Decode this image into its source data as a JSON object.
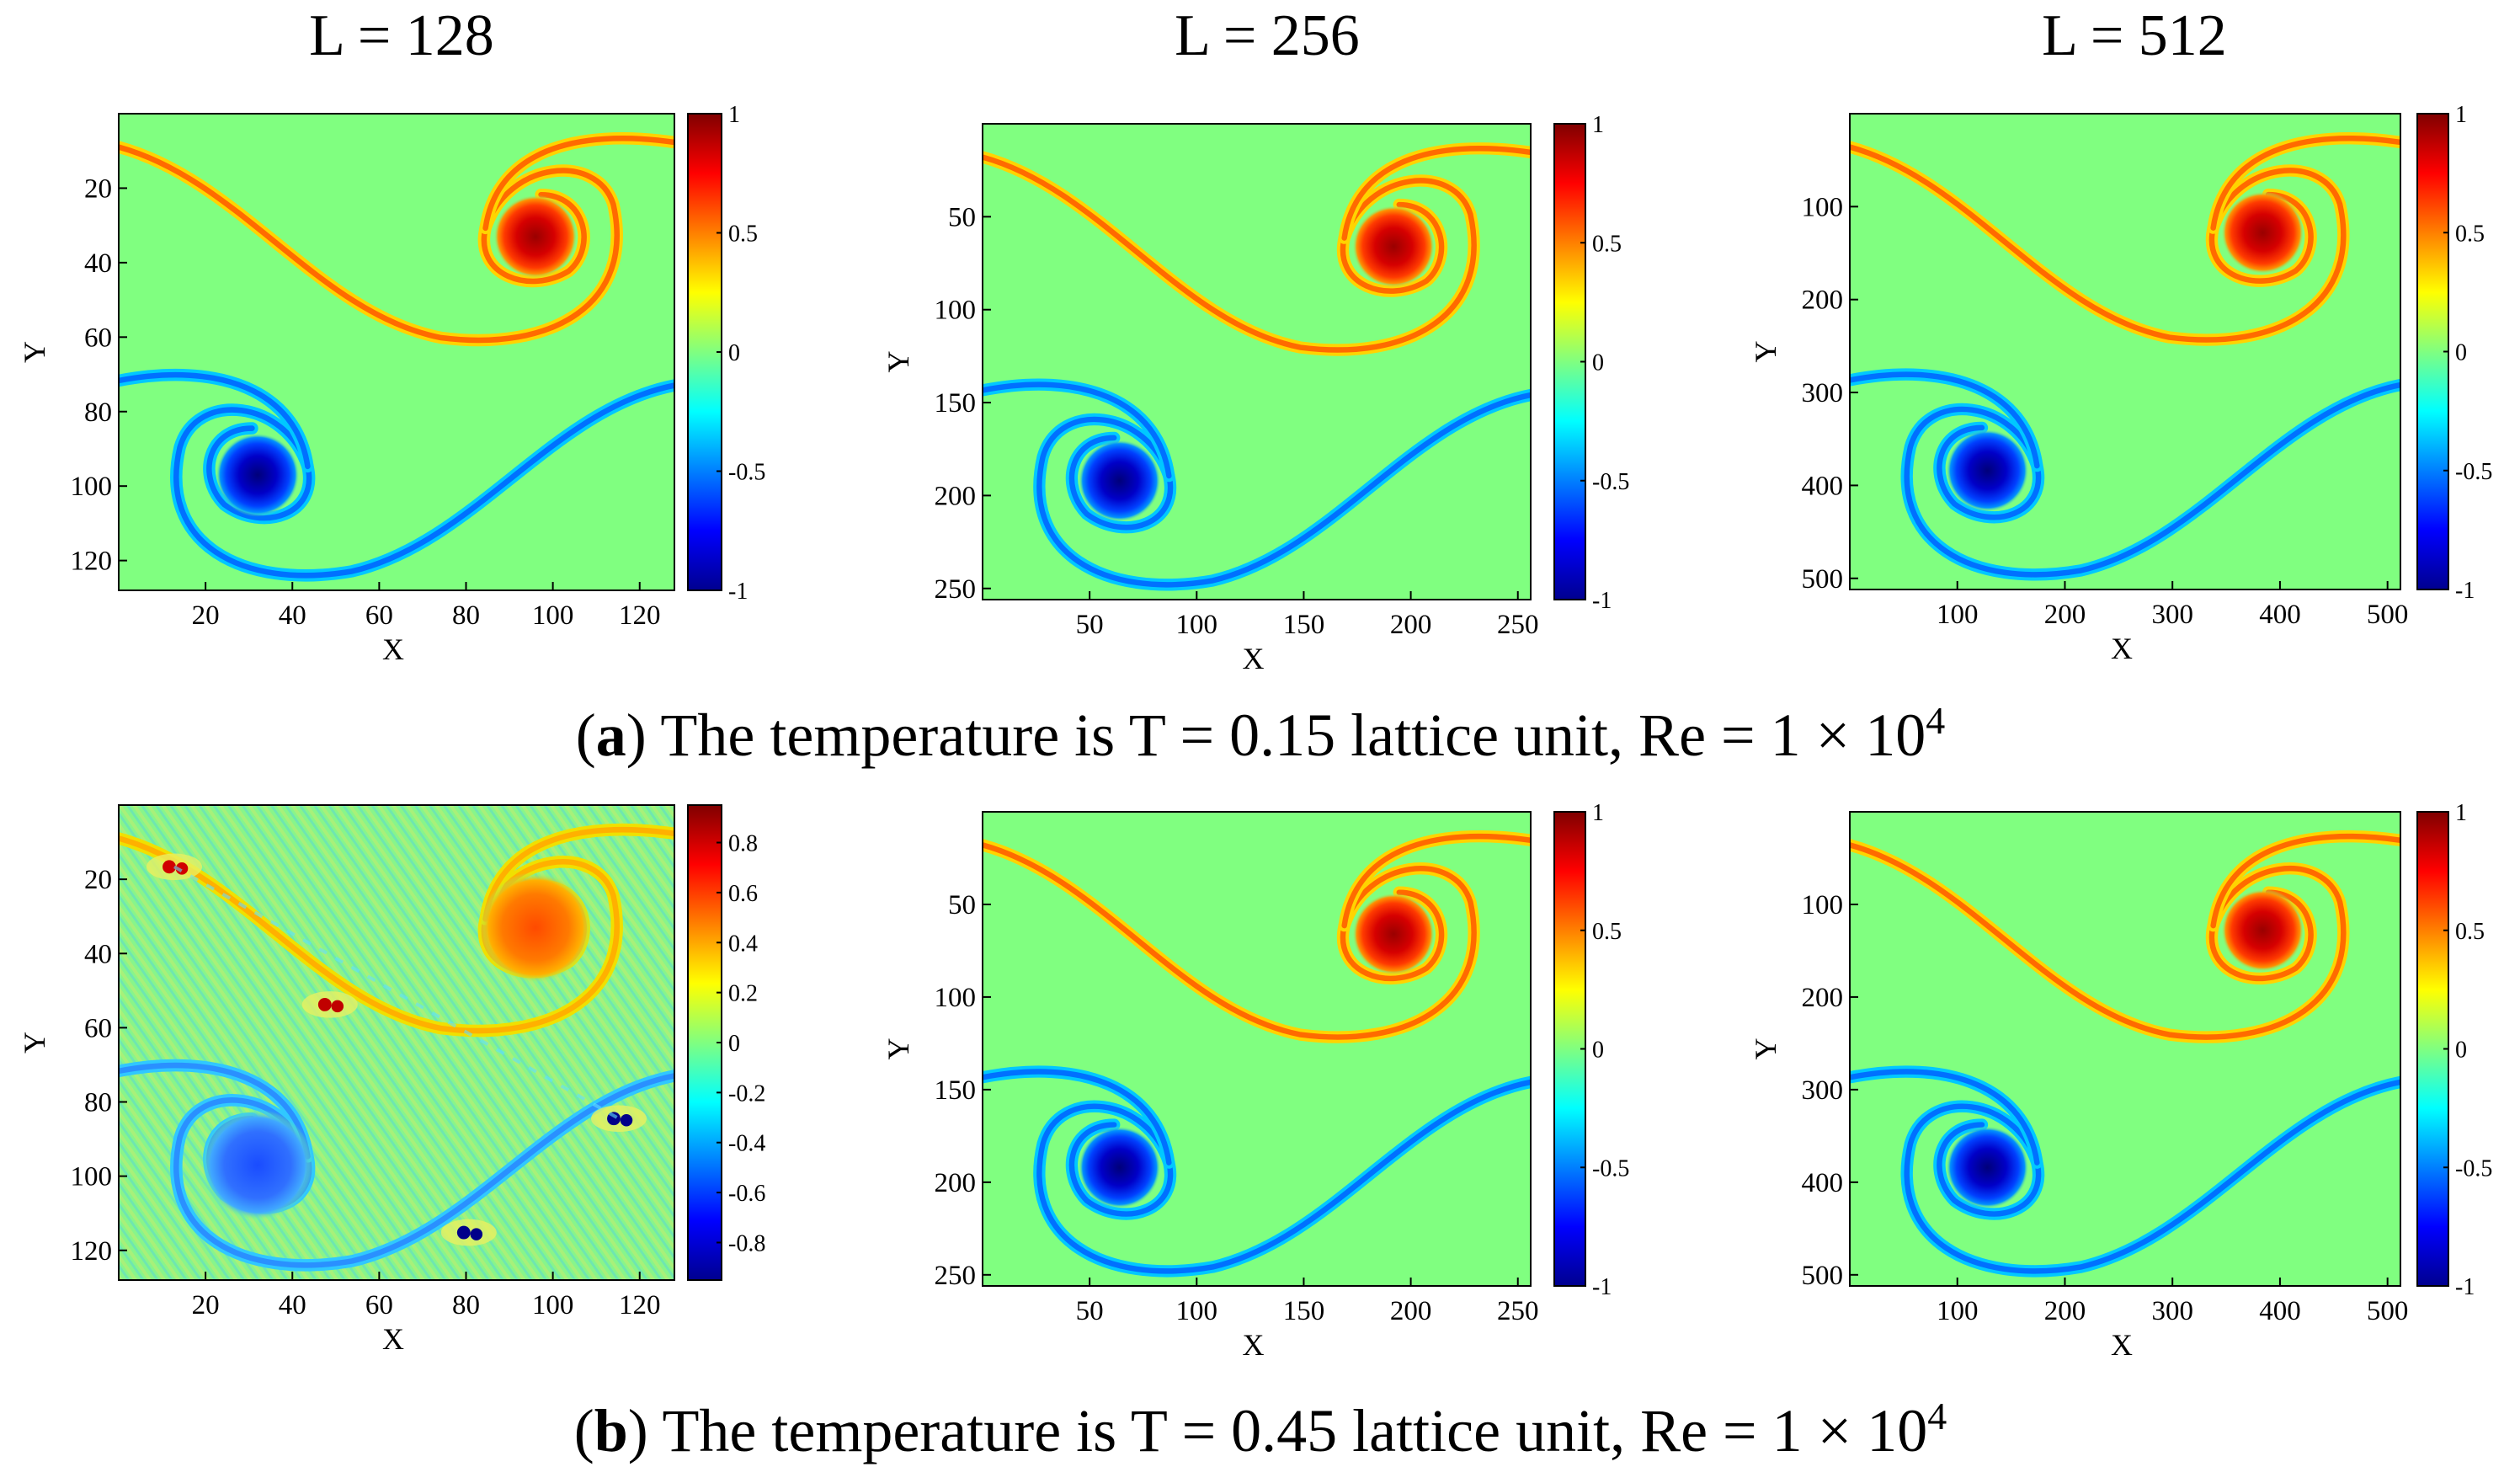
{
  "figure": {
    "column_titles": [
      "L = 128",
      "L = 256",
      "L = 512"
    ],
    "captions": [
      {
        "tag": "a",
        "text": "The temperature is T = 0.15 lattice unit, Re = 1 × 10",
        "sup": "4"
      },
      {
        "tag": "b",
        "text": "The temperature is T = 0.45 lattice unit, Re = 1 × 10",
        "sup": "4"
      }
    ]
  },
  "colors": {
    "colormap": [
      "#00008f",
      "#0000ff",
      "#00ffff",
      "#80ff80",
      "#ffff00",
      "#ff0000",
      "#800000"
    ],
    "axis": "#000000"
  },
  "chart_data": [
    {
      "id": "a1",
      "type": "heatmap",
      "row": "a",
      "L": 128,
      "xlabel": "X",
      "ylabel": "Y",
      "xlim": [
        0,
        128
      ],
      "ylim": [
        128,
        0
      ],
      "x_ticks": [
        20,
        40,
        60,
        80,
        100,
        120
      ],
      "y_ticks": [
        20,
        40,
        60,
        80,
        100,
        120
      ],
      "colorbar": {
        "min": -1,
        "max": 1,
        "ticks": [
          -1,
          -0.5,
          0,
          0.5,
          1
        ],
        "tick_labels": [
          "-1",
          "-0.5",
          "0",
          "0.5",
          "1"
        ]
      },
      "features": {
        "positive_vortex_center": [
          96,
          33
        ],
        "negative_vortex_center": [
          32,
          97
        ],
        "noise": false
      }
    },
    {
      "id": "a2",
      "type": "heatmap",
      "row": "a",
      "L": 256,
      "xlabel": "X",
      "ylabel": "Y",
      "xlim": [
        0,
        256
      ],
      "ylim": [
        256,
        0
      ],
      "x_ticks": [
        50,
        100,
        150,
        200,
        250
      ],
      "y_ticks": [
        50,
        100,
        150,
        200,
        250
      ],
      "colorbar": {
        "min": -1,
        "max": 1,
        "ticks": [
          -1,
          -0.5,
          0,
          0.5,
          1
        ],
        "tick_labels": [
          "-1",
          "-0.5",
          "0",
          "0.5",
          "1"
        ]
      },
      "features": {
        "positive_vortex_center": [
          192,
          66
        ],
        "negative_vortex_center": [
          64,
          192
        ],
        "noise": false
      }
    },
    {
      "id": "a3",
      "type": "heatmap",
      "row": "a",
      "L": 512,
      "xlabel": "X",
      "ylabel": "Y",
      "xlim": [
        0,
        512
      ],
      "ylim": [
        512,
        0
      ],
      "x_ticks": [
        100,
        200,
        300,
        400,
        500
      ],
      "y_ticks": [
        100,
        200,
        300,
        400,
        500
      ],
      "colorbar": {
        "min": -1,
        "max": 1,
        "ticks": [
          -1,
          -0.5,
          0,
          0.5,
          1
        ],
        "tick_labels": [
          "-1",
          "-0.5",
          "0",
          "0.5",
          "1"
        ]
      },
      "features": {
        "positive_vortex_center": [
          384,
          128
        ],
        "negative_vortex_center": [
          128,
          384
        ],
        "noise": false
      }
    },
    {
      "id": "b1",
      "type": "heatmap",
      "row": "b",
      "L": 128,
      "xlabel": "X",
      "ylabel": "Y",
      "xlim": [
        0,
        128
      ],
      "ylim": [
        128,
        0
      ],
      "x_ticks": [
        20,
        40,
        60,
        80,
        100,
        120
      ],
      "y_ticks": [
        20,
        40,
        60,
        80,
        100,
        120
      ],
      "colorbar": {
        "min": -0.95,
        "max": 0.95,
        "ticks": [
          -0.8,
          -0.6,
          -0.4,
          -0.2,
          0,
          0.2,
          0.4,
          0.6,
          0.8
        ],
        "tick_labels": [
          "-0.8",
          "-0.6",
          "-0.4",
          "-0.2",
          "0",
          "0.2",
          "0.4",
          "0.6",
          "0.8"
        ]
      },
      "features": {
        "positive_vortex_center": [
          96,
          33
        ],
        "negative_vortex_center": [
          32,
          97
        ],
        "noise": true
      }
    },
    {
      "id": "b2",
      "type": "heatmap",
      "row": "b",
      "L": 256,
      "xlabel": "X",
      "ylabel": "Y",
      "xlim": [
        0,
        256
      ],
      "ylim": [
        256,
        0
      ],
      "x_ticks": [
        50,
        100,
        150,
        200,
        250
      ],
      "y_ticks": [
        50,
        100,
        150,
        200,
        250
      ],
      "colorbar": {
        "min": -1,
        "max": 1,
        "ticks": [
          -1,
          -0.5,
          0,
          0.5,
          1
        ],
        "tick_labels": [
          "-1",
          "-0.5",
          "0",
          "0.5",
          "1"
        ]
      },
      "features": {
        "positive_vortex_center": [
          192,
          66
        ],
        "negative_vortex_center": [
          64,
          192
        ],
        "noise": false
      }
    },
    {
      "id": "b3",
      "type": "heatmap",
      "row": "b",
      "L": 512,
      "xlabel": "X",
      "ylabel": "Y",
      "xlim": [
        0,
        512
      ],
      "ylim": [
        512,
        0
      ],
      "x_ticks": [
        100,
        200,
        300,
        400,
        500
      ],
      "y_ticks": [
        100,
        200,
        300,
        400,
        500
      ],
      "colorbar": {
        "min": -1,
        "max": 1,
        "ticks": [
          -1,
          -0.5,
          0,
          0.5,
          1
        ],
        "tick_labels": [
          "-1",
          "-0.5",
          "0",
          "0.5",
          "1"
        ]
      },
      "features": {
        "positive_vortex_center": [
          384,
          128
        ],
        "negative_vortex_center": [
          128,
          384
        ],
        "noise": false
      }
    }
  ]
}
